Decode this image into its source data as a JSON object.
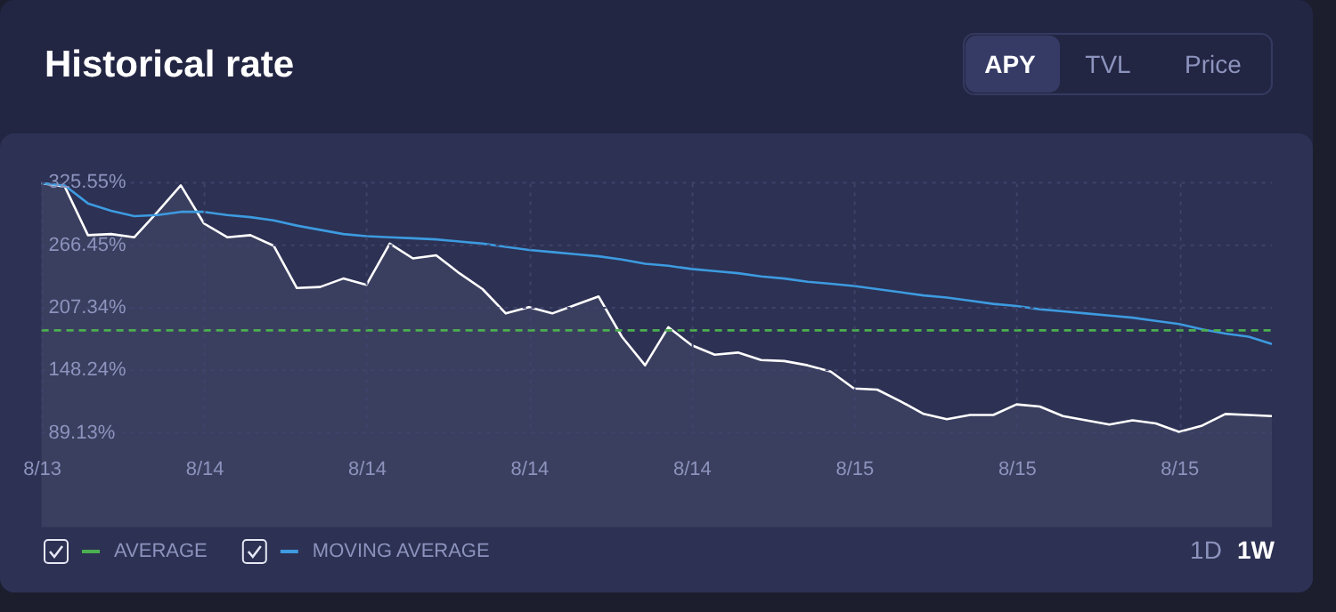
{
  "chart_data": {
    "type": "area",
    "title": "Historical rate",
    "categories": [
      "8/13",
      null,
      null,
      null,
      null,
      null,
      null,
      "8/14",
      null,
      null,
      null,
      null,
      null,
      null,
      "8/14",
      null,
      null,
      null,
      null,
      null,
      null,
      "8/14",
      null,
      null,
      null,
      null,
      null,
      null,
      "8/14",
      null,
      null,
      null,
      null,
      null,
      null,
      "8/15",
      null,
      null,
      null,
      null,
      null,
      null,
      "8/15",
      null,
      null,
      null,
      null,
      null,
      null,
      "8/15",
      null,
      null,
      null,
      null
    ],
    "series": [
      {
        "color": "#ffffff",
        "values": [
          325,
          322,
          276,
          277,
          274,
          298,
          323,
          287,
          274,
          276,
          266,
          226,
          227,
          235,
          229,
          268,
          254,
          257,
          240,
          225,
          202,
          208,
          202,
          210,
          218,
          180,
          153,
          189,
          172,
          163,
          165,
          158,
          157,
          153,
          147,
          131,
          130,
          119,
          107,
          102,
          106,
          106,
          116,
          114,
          105,
          101,
          97,
          101,
          98,
          90,
          96,
          107,
          106,
          105
        ]
      },
      {
        "type": "line",
        "name": "MOVING AVERAGE",
        "color": "#3d9be0",
        "values": [
          325,
          323,
          306,
          299,
          294,
          295,
          298,
          298,
          295,
          293,
          290,
          285,
          281,
          277,
          275,
          274,
          273,
          272,
          270,
          268,
          265,
          262,
          260,
          258,
          256,
          253,
          249,
          247,
          244,
          242,
          240,
          237,
          235,
          232,
          230,
          228,
          225,
          222,
          219,
          217,
          214,
          211,
          209,
          206,
          204,
          202,
          200,
          198,
          195,
          192,
          187,
          183,
          180,
          173
        ]
      }
    ],
    "ref_lines": [
      {
        "axis": "y",
        "value": 186,
        "label": "AVERAGE",
        "color": "#4caf50",
        "line_style": "dashed"
      }
    ],
    "ylim": [
      89.13,
      325.55
    ],
    "yticks": [
      {
        "value": 89.13,
        "label": "89.13%"
      },
      {
        "value": 148.24,
        "label": "148.24%"
      },
      {
        "value": 207.34,
        "label": "207.34%"
      },
      {
        "value": 266.45,
        "label": "266.45%"
      },
      {
        "value": 325.55,
        "label": "325.55%"
      }
    ],
    "grid": true,
    "legend": "bottom left",
    "annotations": [
      "APY",
      "TVL",
      "Price",
      "1D",
      "1W"
    ]
  }
}
